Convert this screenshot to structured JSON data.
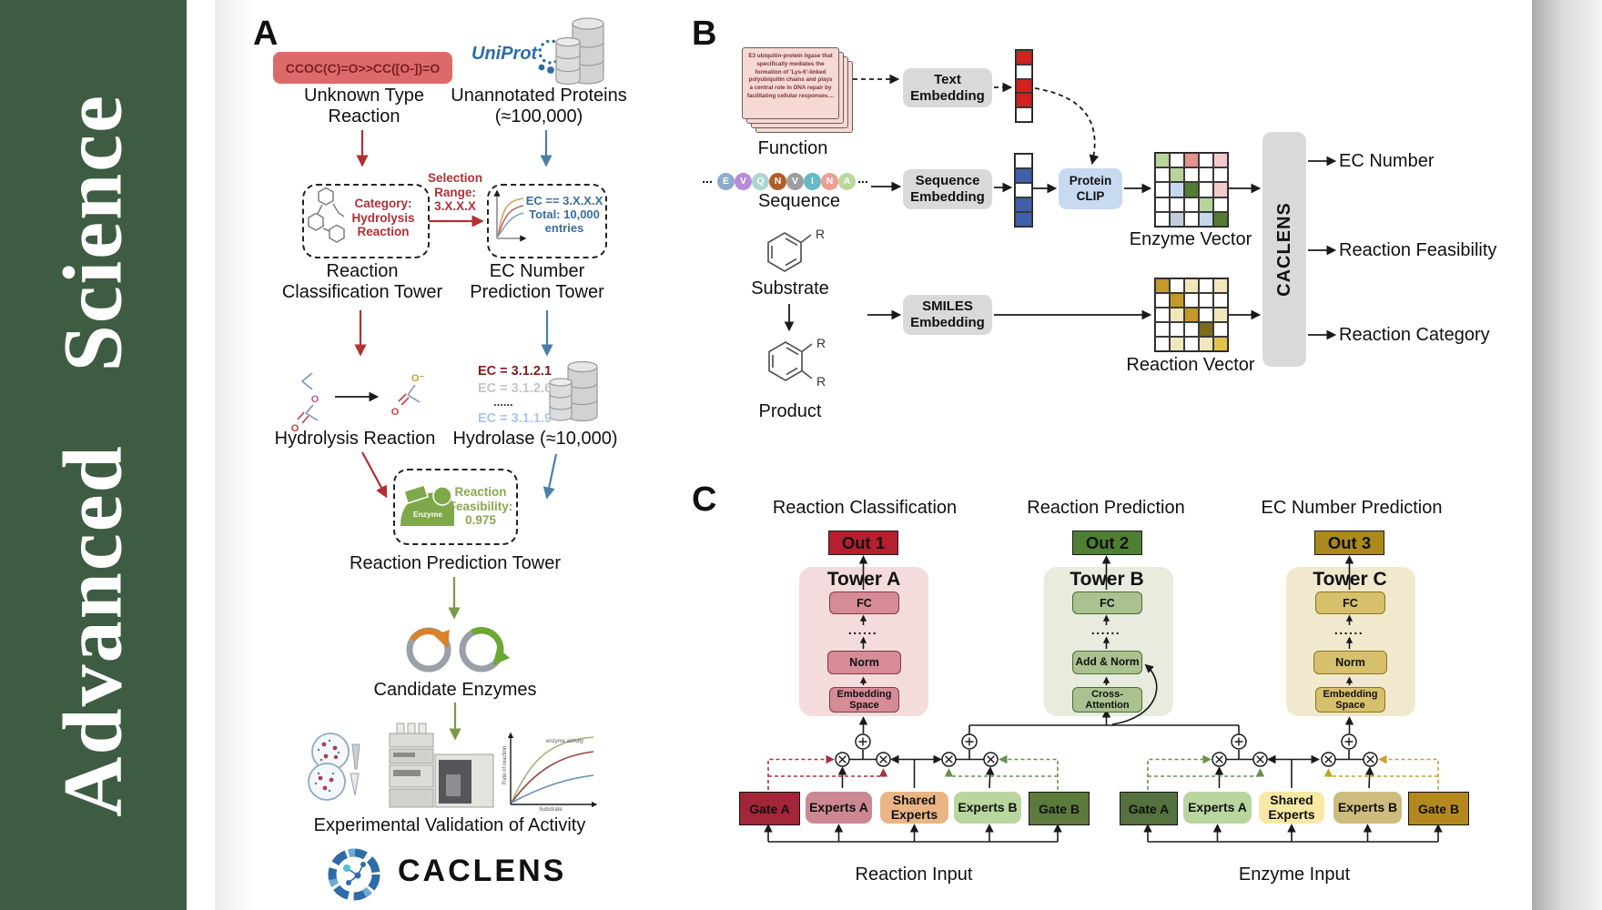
{
  "sidebar": {
    "journal": "Advanced Science"
  },
  "panelA": {
    "label": "A",
    "smiles": "CCOC(C)=O>>CC([O-])=O",
    "unknown_reaction": "Unknown Type Reaction",
    "uniprot_logo": "UniProt",
    "unannotated_proteins": "Unannotated Proteins (≈100,000)",
    "category_box": "Category: Hydrolysis Reaction",
    "selection_range": "Selection Range: 3.X.X.X",
    "ec_box": "EC == 3.X.X.X Total: 10,000 entries",
    "tower_classification": "Reaction Classification Tower",
    "tower_ec": "EC Number Prediction Tower",
    "hydrolysis_reaction": "Hydrolysis Reaction",
    "ec_list": {
      "l1": "EC = 3.1.2.1",
      "l2": "EC = 3.1.2.6",
      "dots": "......",
      "l3": "EC = 3.1.1.9"
    },
    "hydrolase": "Hydrolase (≈10,000)",
    "enzyme_badge": "Enzyme",
    "feasibility": "Reaction Feasibility: 0.975",
    "tower_prediction": "Reaction Prediction Tower",
    "candidate_enzymes": "Candidate Enzymes",
    "validation": "Experimental Validation of Activity",
    "activity_plot": {
      "ylabel": "Rate of reaction",
      "xlabel": "Substrate",
      "legend": "enzyme activity"
    },
    "molecule_atoms": {
      "o": "O",
      "o_minus": "O⁻"
    },
    "brand": "CACLENS"
  },
  "panelB": {
    "label": "B",
    "function_card": "E3 ubiquitin-protein ligase that specifically mediates the formation of 'Lys-6'-linked polyubiquitin chains and plays a central role in DNA repair by facilitating cellular responses....",
    "function_label": "Function",
    "ellipsis": "...",
    "sequence_label": "Sequence",
    "substrate_label": "Substrate",
    "product_label": "Product",
    "r_group": "R",
    "text_embedding": "Text Embedding",
    "sequence_embedding": "Sequence Embedding",
    "smiles_embedding": "SMILES Embedding",
    "protein_clip": "Protein CLIP",
    "enzyme_vector_label": "Enzyme Vector",
    "reaction_vector_label": "Reaction Vector",
    "caclens": "CACLENS",
    "out_ec": "EC Number",
    "out_feasibility": "Reaction Feasibility",
    "out_category": "Reaction Category",
    "sequence_residues": [
      {
        "letter": "E",
        "color": "#8fa9cf"
      },
      {
        "letter": "V",
        "color": "#b78cd9"
      },
      {
        "letter": "Q",
        "color": "#abd6d2"
      },
      {
        "letter": "N",
        "color": "#b25c28"
      },
      {
        "letter": "V",
        "color": "#9e9e9e"
      },
      {
        "letter": "I",
        "color": "#63b9c8"
      },
      {
        "letter": "N",
        "color": "#eb9f92"
      },
      {
        "letter": "A",
        "color": "#bcd89c"
      }
    ],
    "text_vector": [
      "R",
      "W",
      "R",
      "R",
      "W"
    ],
    "sequence_vector": [
      "W",
      "B",
      "W",
      "B",
      "B"
    ],
    "enzyme_vector_grid": [
      [
        "g",
        "W",
        "r",
        "W",
        "p"
      ],
      [
        "W",
        "g",
        "W",
        "W",
        "W"
      ],
      [
        "W",
        "b",
        "G",
        "W",
        "p"
      ],
      [
        "W",
        "W",
        "W",
        "g",
        "W"
      ],
      [
        "W",
        "s",
        "W",
        "b",
        "G"
      ]
    ],
    "reaction_vector_grid": [
      [
        "d",
        "W",
        "y",
        "W",
        "y"
      ],
      [
        "W",
        "d",
        "W",
        "W",
        "W"
      ],
      [
        "W",
        "y",
        "d",
        "W",
        "y"
      ],
      [
        "W",
        "W",
        "W",
        "o",
        "W"
      ],
      [
        "W",
        "y",
        "W",
        "y",
        "Y"
      ]
    ]
  },
  "panelC": {
    "label": "C",
    "col1": {
      "title": "Reaction Classification",
      "out": "Out 1",
      "tower": "Tower A",
      "fc": "FC",
      "dots": "......",
      "norm": "Norm",
      "bottom": "Embedding Space"
    },
    "col2": {
      "title": "Reaction Prediction",
      "out": "Out 2",
      "tower": "Tower B",
      "fc": "FC",
      "dots": "......",
      "norm": "Add & Norm",
      "bottom": "Cross-Attention"
    },
    "col3": {
      "title": "EC Number Prediction",
      "out": "Out 3",
      "tower": "Tower C",
      "fc": "FC",
      "dots": "......",
      "norm": "Norm",
      "bottom": "Embedding Space"
    },
    "group1": {
      "gateA": "Gate A",
      "expertsA": "Experts A",
      "shared": "Shared Experts",
      "expertsB": "Experts B",
      "gateB": "Gate B",
      "input": "Reaction Input"
    },
    "group2": {
      "gateA": "Gate A",
      "expertsA": "Experts A",
      "shared": "Shared Experts",
      "expertsB": "Experts B",
      "gateB": "Gate B",
      "input": "Enzyme Input"
    }
  },
  "vector_palette": {
    "W": "#ffffff",
    "R": "#d32020",
    "B": "#3f5fa8",
    "g": "#b7d49a",
    "G": "#527d33",
    "r": "#e89090",
    "p": "#f3c9c9",
    "b": "#c5d8ec",
    "s": "#c3ccd9",
    "d": "#c3992a",
    "y": "#f1e7bb",
    "o": "#7c6b1d",
    "Y": "#e2c34c"
  },
  "colors": {
    "sidebar_green": "#3e5c42",
    "accent_red": "#b03035",
    "accent_blue": "#4a7fa8",
    "accent_green": "#7a9a4a",
    "smiles_bg": "#dd6a6a",
    "smiles_text": "#7a1f24",
    "ec_blue_text": "#3a6e9e",
    "ec_red": "#8b1a1a",
    "ec_gray": "#c6c6c6",
    "ec_lightblue": "#aec6e8",
    "feasibility_green": "#8aa84e",
    "uniprot_blue": "#2e6da4",
    "embed_box": "#d9d9d9",
    "clip_box": "#c7daf0",
    "caclens_block": "#d9d9d9",
    "card_text": "#7a3535",
    "out1": "#b51f2f",
    "out2": "#4e7f35",
    "out3": "#ab8a1d",
    "towerA_bg": "#f4dcdc",
    "towerA_box": "#d68b96",
    "towerB_bg": "#e7ecdf",
    "towerB_box": "#abc290",
    "towerC_bg": "#f1e9cd",
    "towerC_box": "#d7c06c",
    "gate_red": "#a32638",
    "experts_rose": "#cb8893",
    "shared_orange": "#e9b584",
    "experts_lightgreen": "#b8d69e",
    "gate_darkgreen": "#5d7a3d",
    "gate_green2": "#55713f",
    "shared_yellow": "#f7e8a6",
    "experts_khaki": "#cdbc7e",
    "gate_gold": "#b3891f",
    "dashed_red": "#a83240",
    "dashed_green": "#6a8f4a",
    "dashed_gold": "#c8a02a"
  }
}
